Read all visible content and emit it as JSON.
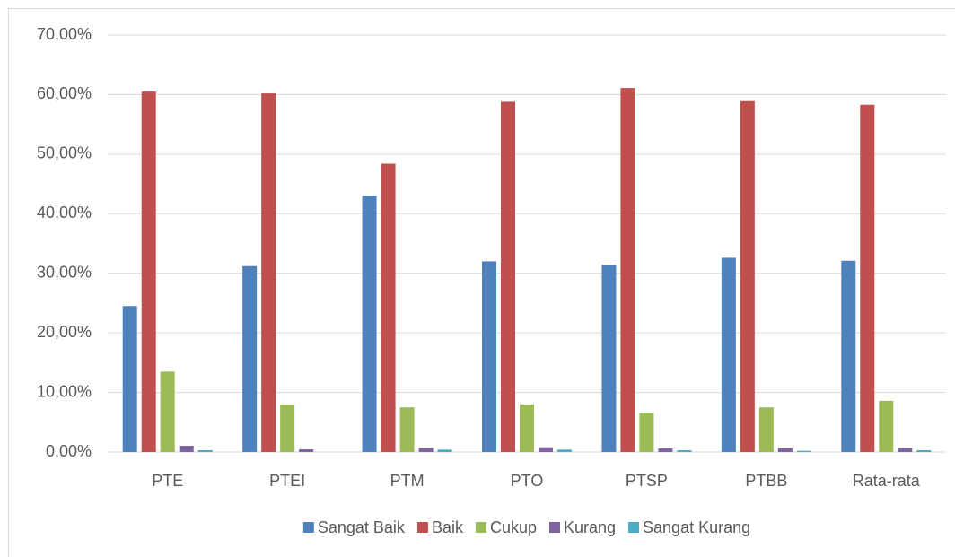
{
  "chart_data": {
    "type": "bar",
    "categories": [
      "PTE",
      "PTEI",
      "PTM",
      "PTO",
      "PTSP",
      "PTBB",
      "Rata-rata"
    ],
    "series": [
      {
        "name": "Sangat Baik",
        "color": "#4f81bd",
        "values": [
          24.5,
          31.2,
          43.0,
          32.0,
          31.4,
          32.6,
          32.1
        ]
      },
      {
        "name": "Baik",
        "color": "#c0504d",
        "values": [
          60.5,
          60.2,
          48.4,
          58.8,
          61.1,
          58.9,
          58.3
        ]
      },
      {
        "name": "Cukup",
        "color": "#9bbb59",
        "values": [
          13.5,
          8.0,
          7.5,
          8.0,
          6.6,
          7.5,
          8.6
        ]
      },
      {
        "name": "Kurang",
        "color": "#8064a2",
        "values": [
          1.05,
          0.45,
          0.7,
          0.8,
          0.6,
          0.7,
          0.7
        ]
      },
      {
        "name": "Sangat Kurang",
        "color": "#4bacc6",
        "values": [
          0.3,
          0.0,
          0.4,
          0.4,
          0.3,
          0.2,
          0.3
        ]
      }
    ],
    "ylim": [
      0,
      70
    ],
    "yticks": [
      {
        "value": 0,
        "label": "0,00%"
      },
      {
        "value": 10,
        "label": "10,00%"
      },
      {
        "value": 20,
        "label": "20,00%"
      },
      {
        "value": 30,
        "label": "30,00%"
      },
      {
        "value": 40,
        "label": "40,00%"
      },
      {
        "value": 50,
        "label": "50,00%"
      },
      {
        "value": 60,
        "label": "60,00%"
      },
      {
        "value": 70,
        "label": "70,00%"
      }
    ],
    "grid": true,
    "legend": "bottom"
  }
}
